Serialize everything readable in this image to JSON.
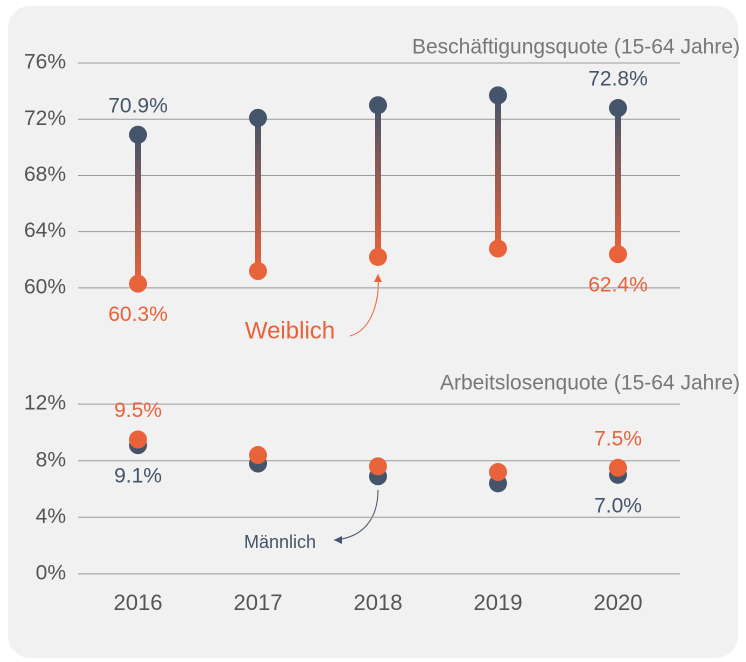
{
  "chart_data": [
    {
      "type": "dumbbell",
      "title": "Beschäftigungsquote (15-64 Jahre)",
      "ylim": [
        58,
        77
      ],
      "yticks": [
        {
          "value": 60,
          "label": "60%"
        },
        {
          "value": 64,
          "label": "64%"
        },
        {
          "value": 68,
          "label": "68%"
        },
        {
          "value": 72,
          "label": "72%"
        },
        {
          "value": 76,
          "label": "76%"
        }
      ],
      "grid": true,
      "series": [
        {
          "color": "#44546a",
          "values": [
            70.9,
            72.1,
            73.0,
            73.7,
            72.8
          ],
          "value_labels": [
            "70.9%",
            null,
            null,
            null,
            "72.8%"
          ]
        },
        {
          "name": "Weiblich",
          "color": "#e8623a",
          "values": [
            60.3,
            61.2,
            62.2,
            62.8,
            62.4
          ],
          "value_labels": [
            "60.3%",
            null,
            null,
            null,
            "62.4%"
          ]
        }
      ]
    },
    {
      "type": "dot",
      "title": "Arbeitslosenquote (15-64 Jahre)",
      "categories": [
        "2016",
        "2017",
        "2018",
        "2019",
        "2020"
      ],
      "ylim": [
        -1,
        13
      ],
      "yticks": [
        {
          "value": 0,
          "label": "0%"
        },
        {
          "value": 4,
          "label": "4%"
        },
        {
          "value": 8,
          "label": "8%"
        },
        {
          "value": 12,
          "label": "12%"
        }
      ],
      "grid": true,
      "series": [
        {
          "name": "Männlich",
          "color": "#44546a",
          "values": [
            9.1,
            7.8,
            6.9,
            6.4,
            7.0
          ],
          "value_labels": [
            "9.1%",
            null,
            null,
            null,
            "7.0%"
          ]
        },
        {
          "color": "#e8623a",
          "values": [
            9.5,
            8.4,
            7.6,
            7.2,
            7.5
          ],
          "value_labels": [
            "9.5%",
            null,
            null,
            null,
            "7.5%"
          ]
        }
      ]
    }
  ]
}
